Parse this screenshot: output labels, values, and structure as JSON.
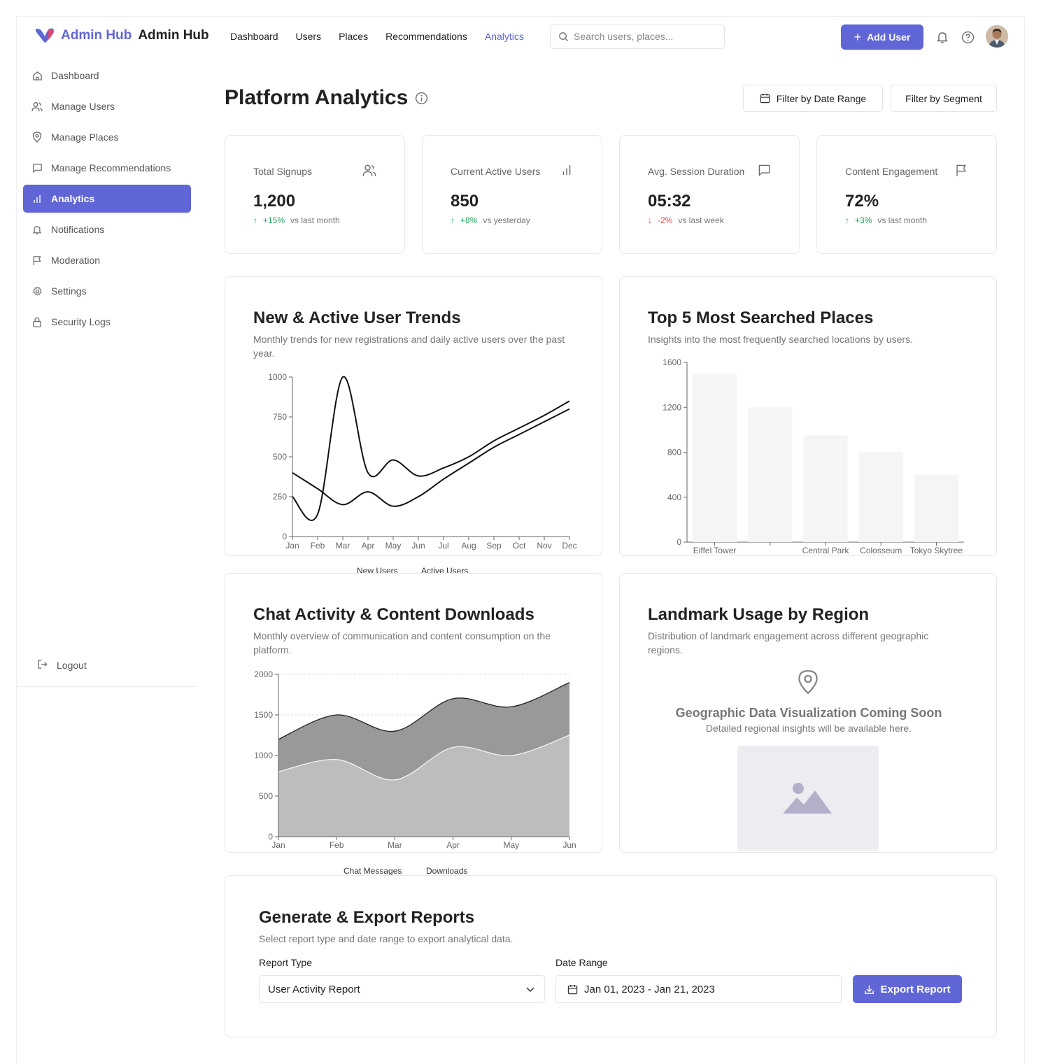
{
  "header": {
    "brand_primary": "Admin Hub",
    "brand_secondary": "Admin Hub",
    "nav": [
      "Dashboard",
      "Users",
      "Places",
      "Recommendations",
      "Analytics"
    ],
    "active_nav": "Analytics",
    "search_placeholder": "Search users, places...",
    "add_user_label": "Add User",
    "accent_color": "#6166d6"
  },
  "sidebar": {
    "items": [
      {
        "label": "Dashboard",
        "icon": "home-icon"
      },
      {
        "label": "Manage Users",
        "icon": "users-icon"
      },
      {
        "label": "Manage Places",
        "icon": "map-pin-icon"
      },
      {
        "label": "Manage Recommendations",
        "icon": "message-square-icon"
      },
      {
        "label": "Analytics",
        "icon": "bar-chart-icon",
        "active": true
      },
      {
        "label": "Notifications",
        "icon": "bell-icon"
      },
      {
        "label": "Moderation",
        "icon": "flag-icon"
      },
      {
        "label": "Settings",
        "icon": "gear-icon"
      },
      {
        "label": "Security Logs",
        "icon": "lock-icon"
      }
    ],
    "logout_label": "Logout"
  },
  "page": {
    "title": "Platform Analytics",
    "filter_date": "Filter by Date Range",
    "filter_segment": "Filter by Segment"
  },
  "kpis": [
    {
      "label": "Total Signups",
      "value": "1,200",
      "delta": "+15%",
      "direction": "up",
      "compare": "vs last month",
      "icon": "users-icon"
    },
    {
      "label": "Current Active Users",
      "value": "850",
      "delta": "+8%",
      "direction": "up",
      "compare": "vs yesterday",
      "icon": "bar-chart-icon"
    },
    {
      "label": "Avg. Session Duration",
      "value": "05:32",
      "delta": "-2%",
      "direction": "down",
      "compare": "vs last week",
      "icon": "message-square-icon"
    },
    {
      "label": "Content Engagement",
      "value": "72%",
      "delta": "+3%",
      "direction": "up",
      "compare": "vs last month",
      "icon": "flag-icon"
    }
  ],
  "trends_card": {
    "title": "New & Active User Trends",
    "subtitle": "Monthly trends for new registrations and daily active users over the past year."
  },
  "places_card": {
    "title": "Top 5 Most Searched Places",
    "subtitle": "Insights into the most frequently searched locations by users."
  },
  "chat_card": {
    "title": "Chat Activity & Content Downloads",
    "subtitle": "Monthly overview of communication and content consumption on the platform."
  },
  "landmark_card": {
    "title": "Landmark Usage by Region",
    "subtitle": "Distribution of landmark engagement across different geographic regions.",
    "placeholder_title": "Geographic Data Visualization Coming Soon",
    "placeholder_text": "Detailed regional insights will be available here."
  },
  "report": {
    "title": "Generate & Export Reports",
    "subtitle": "Select report type and date range to export analytical data.",
    "type_label": "Report Type",
    "type_value": "User Activity Report",
    "range_label": "Date Range",
    "range_value": "Jan 01, 2023 - Jan 21, 2023",
    "export_label": "Export Report"
  },
  "chart_data": [
    {
      "type": "line",
      "x": [
        "Jan",
        "Feb",
        "Mar",
        "Apr",
        "May",
        "Jun",
        "Jul",
        "Aug",
        "Sep",
        "Oct",
        "Nov",
        "Dec"
      ],
      "ylim": [
        0,
        1000
      ],
      "yticks": [
        0,
        250,
        500,
        750,
        1000
      ],
      "series": [
        {
          "name": "New Users",
          "values": [
            250,
            140,
            1000,
            400,
            480,
            380,
            430,
            500,
            600,
            680,
            760,
            850
          ]
        },
        {
          "name": "Active Users",
          "values": [
            400,
            300,
            200,
            280,
            190,
            250,
            360,
            460,
            560,
            640,
            720,
            800
          ]
        }
      ],
      "legend": "bottom"
    },
    {
      "type": "bar",
      "categories": [
        "Eiffel Tower",
        "Times Square",
        "Central Park",
        "Colosseum",
        "Tokyo Skytree"
      ],
      "tick_labels_shown": [
        "Eiffel Tower",
        "",
        "Central Park",
        "Colosseum",
        "Tokyo Skytree"
      ],
      "values": [
        1500,
        1200,
        950,
        800,
        600
      ],
      "ylim": [
        0,
        1600
      ],
      "yticks": [
        0,
        400,
        800,
        1200,
        1600
      ]
    },
    {
      "type": "area",
      "x": [
        "Jan",
        "Feb",
        "Mar",
        "Apr",
        "May",
        "Jun"
      ],
      "ylim": [
        0,
        2000
      ],
      "yticks": [
        0,
        500,
        1000,
        1500,
        2000
      ],
      "stacked": true,
      "series": [
        {
          "name": "Chat Messages",
          "values": [
            800,
            950,
            700,
            1100,
            1000,
            1250
          ],
          "color": "#bdbdbd"
        },
        {
          "name": "Downloads",
          "values": [
            400,
            550,
            600,
            600,
            600,
            650
          ],
          "color": "#999999"
        }
      ],
      "legend": "bottom"
    }
  ]
}
